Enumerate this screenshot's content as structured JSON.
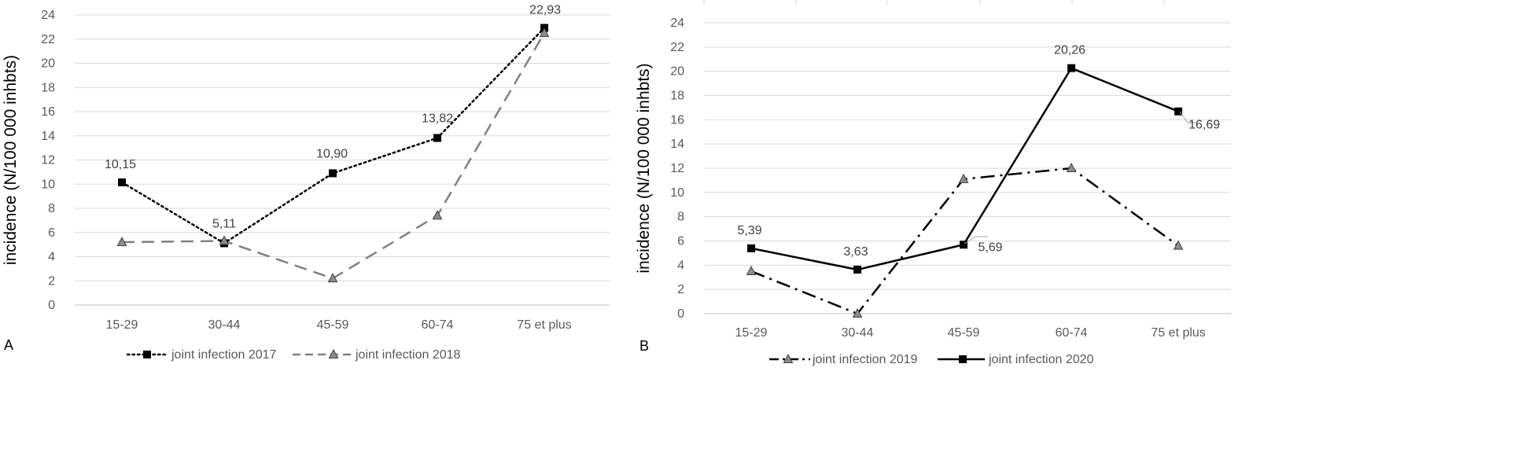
{
  "chart_data": [
    {
      "type": "line",
      "panel_label": "A",
      "categories": [
        "15-29",
        "30-44",
        "45-59",
        "60-74",
        "75 et plus"
      ],
      "ylabel": "incidence (N/100 000 inhbts)",
      "xlabel": "",
      "ylim": [
        0,
        24
      ],
      "yticks": [
        "0",
        "2",
        "4",
        "6",
        "8",
        "10",
        "12",
        "14",
        "16",
        "18",
        "20",
        "22",
        "24"
      ],
      "grid": true,
      "legend_position": "bottom",
      "series": [
        {
          "name": "joint infection 2017",
          "values": [
            10.15,
            5.11,
            10.9,
            13.82,
            22.93
          ],
          "labels": [
            "10,15",
            "5,11",
            "10,90",
            "13,82",
            "22,93"
          ],
          "style": "dotted",
          "marker": "square",
          "color": "#000000"
        },
        {
          "name": "joint infection  2018",
          "values": [
            5.2,
            5.3,
            2.2,
            7.4,
            22.5
          ],
          "labels": [],
          "style": "dashed",
          "marker": "triangle",
          "color": "#808080"
        }
      ]
    },
    {
      "type": "line",
      "panel_label": "B",
      "categories": [
        "15-29",
        "30-44",
        "45-59",
        "60-74",
        "75 et plus"
      ],
      "ylabel": "incidence (N/100 000 inhbts)",
      "xlabel": "",
      "ylim": [
        0,
        24
      ],
      "yticks": [
        "0",
        "2",
        "4",
        "6",
        "8",
        "10",
        "12",
        "14",
        "16",
        "18",
        "20",
        "22",
        "24"
      ],
      "grid": true,
      "legend_position": "bottom",
      "series": [
        {
          "name": "joint infection 2019",
          "values": [
            3.5,
            0,
            11.1,
            12.0,
            5.6
          ],
          "labels": [],
          "style": "dash-dot",
          "marker": "triangle",
          "color": "#000000"
        },
        {
          "name": "joint infection 2020",
          "values": [
            5.39,
            3.63,
            5.69,
            20.26,
            16.69
          ],
          "labels": [
            "5,39",
            "3,63",
            "5,69",
            "20,26",
            "16,69"
          ],
          "style": "solid",
          "marker": "square",
          "color": "#000000"
        }
      ]
    }
  ]
}
